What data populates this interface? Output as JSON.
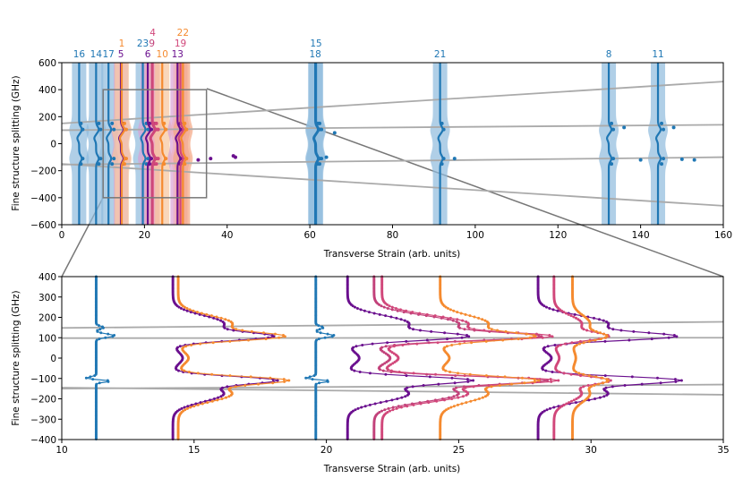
{
  "chart_data": [
    {
      "type": "line",
      "title": "",
      "xlabel": "Transverse Strain (arb. units)",
      "ylabel": "Fine structure splitting (GHz)",
      "xlim": [
        0,
        160
      ],
      "ylim": [
        -600,
        600
      ],
      "xticks": [
        0,
        20,
        40,
        60,
        80,
        100,
        120,
        140,
        160
      ],
      "yticks": [
        -600,
        -400,
        -200,
        0,
        200,
        400,
        600
      ],
      "grid": false,
      "trend_lines": [
        {
          "name": "upper-branch",
          "x": [
            0,
            160
          ],
          "y": [
            150,
            460
          ]
        },
        {
          "name": "upper-mid",
          "x": [
            0,
            160
          ],
          "y": [
            100,
            140
          ]
        },
        {
          "name": "lower-mid",
          "x": [
            0,
            160
          ],
          "y": [
            -155,
            -100
          ]
        },
        {
          "name": "lower-branch",
          "x": [
            0,
            160
          ],
          "y": [
            -150,
            -460
          ]
        }
      ],
      "series": [
        {
          "label": "16",
          "x": 4.2,
          "color": "#1f77b4",
          "band": "#8fbbdd",
          "labelRow": 0
        },
        {
          "label": "14",
          "x": 8.3,
          "color": "#1f77b4",
          "band": "#8fbbdd",
          "labelRow": 0
        },
        {
          "label": "17",
          "x": 11.3,
          "color": "#1f77b4",
          "band": "#8fbbdd",
          "labelRow": 0
        },
        {
          "label": "5",
          "x": 14.3,
          "color": "#6a0f8e",
          "band": "#d9a3d6",
          "labelRow": 1
        },
        {
          "label": "1",
          "x": 14.5,
          "color": "#f58a2f",
          "band": "#f7c59c",
          "labelRow": 2
        },
        {
          "label": "23",
          "x": 19.6,
          "color": "#1f77b4",
          "band": "#8fbbdd",
          "labelRow": 2
        },
        {
          "label": "6",
          "x": 20.8,
          "color": "#6a0f8e",
          "band": "#d9a3d6",
          "labelRow": 1
        },
        {
          "label": "9",
          "x": 21.8,
          "color": "#c2417a",
          "band": "#e8aab8",
          "labelRow": 2
        },
        {
          "label": "4",
          "x": 22.0,
          "color": "#d1477a",
          "band": "#f0b0c0",
          "labelRow": 3
        },
        {
          "label": "10",
          "x": 24.3,
          "color": "#f58a2f",
          "band": "#f7c59c",
          "labelRow": 1
        },
        {
          "label": "13",
          "x": 28.0,
          "color": "#6a0f8e",
          "band": "#d9a3d6",
          "labelRow": 1
        },
        {
          "label": "19",
          "x": 28.7,
          "color": "#d1477a",
          "band": "#f0b0c0",
          "labelRow": 2
        },
        {
          "label": "22",
          "x": 29.3,
          "color": "#f58a2f",
          "band": "#f4a582",
          "labelRow": 3
        },
        {
          "label": "18",
          "x": 61.3,
          "color": "#1f77b4",
          "band": "#8fbbdd",
          "labelRow": 1
        },
        {
          "label": "15",
          "x": 61.5,
          "color": "#1f77b4",
          "band": "#8fbbdd",
          "labelRow": 2
        },
        {
          "label": "21",
          "x": 91.5,
          "color": "#1f77b4",
          "band": "#8fbbdd",
          "labelRow": 1
        },
        {
          "label": "8",
          "x": 132.3,
          "color": "#1f77b4",
          "band": "#8fbbdd",
          "labelRow": 1
        },
        {
          "label": "11",
          "x": 144.2,
          "color": "#1f77b4",
          "band": "#8fbbdd",
          "labelRow": 1
        }
      ],
      "inset_box": {
        "x": [
          10,
          35
        ],
        "y": [
          -400,
          400
        ]
      }
    },
    {
      "type": "line",
      "title": "",
      "xlabel": "Transverse Strain (arb. units)",
      "ylabel": "Fine structure splitting (GHz)",
      "xlim": [
        10,
        35
      ],
      "ylim": [
        -400,
        400
      ],
      "xticks": [
        10,
        15,
        20,
        25,
        30,
        35
      ],
      "yticks": [
        -400,
        -300,
        -200,
        -100,
        0,
        100,
        200,
        300,
        400
      ],
      "grid": false,
      "trend_lines": [
        {
          "name": "upper-branch",
          "x": [
            10,
            35
          ],
          "y": [
            148,
            178
          ]
        },
        {
          "name": "upper-mid",
          "x": [
            10,
            35
          ],
          "y": [
            98,
            100
          ]
        },
        {
          "name": "lower-mid",
          "x": [
            10,
            35
          ],
          "y": [
            -150,
            -130
          ]
        },
        {
          "name": "lower-branch",
          "x": [
            10,
            35
          ],
          "y": [
            -145,
            -180
          ]
        }
      ],
      "series": [
        {
          "label": "17",
          "x": 11.3,
          "color": "#1f77b4",
          "pk": 12.0
        },
        {
          "label": "5",
          "x": 14.2,
          "color": "#6a0f8e",
          "pk": 17.7
        },
        {
          "label": "1",
          "x": 14.4,
          "color": "#f58a2f",
          "pk": 18.1
        },
        {
          "label": "23",
          "x": 19.6,
          "color": "#1f77b4",
          "pk": 20.3
        },
        {
          "label": "6",
          "x": 20.8,
          "color": "#6a0f8e",
          "pk": 25.0
        },
        {
          "label": "9",
          "x": 21.8,
          "color": "#c2417a",
          "pk": 27.6
        },
        {
          "label": "4",
          "x": 22.1,
          "color": "#d1477a",
          "pk": 28.0
        },
        {
          "label": "10",
          "x": 24.3,
          "color": "#f58a2f",
          "pk": 27.6
        },
        {
          "label": "13",
          "x": 28.0,
          "color": "#6a0f8e",
          "pk": 32.8
        },
        {
          "label": "19",
          "x": 28.6,
          "color": "#d1477a",
          "pk": 30.5
        },
        {
          "label": "22",
          "x": 29.3,
          "color": "#f58a2f",
          "pk": 30.5
        }
      ]
    }
  ]
}
